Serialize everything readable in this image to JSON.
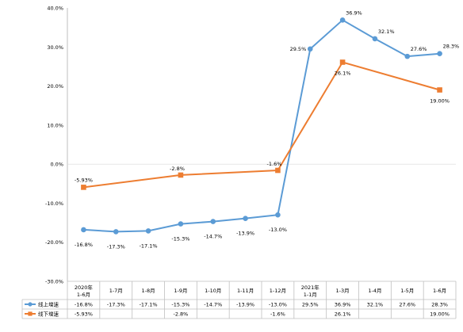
{
  "chart_data": {
    "type": "line",
    "categories": [
      "2020年\n1-6月",
      "1-7月",
      "1-8月",
      "1-9月",
      "1-10月",
      "1-11月",
      "1-12月",
      "2021年\n1-1月",
      "1-3月",
      "1-4月",
      "1-5月",
      "1-6月"
    ],
    "yticks": [
      "40.0%",
      "30.0%",
      "20.0%",
      "10.0%",
      "0.0%",
      "-10.0%",
      "-20.0%",
      "-30.0%"
    ],
    "ylim": [
      -30,
      40
    ],
    "grid": false,
    "legend_placement": "bottom-left (data table)",
    "series": [
      {
        "name": "线上增速",
        "color": "#5b9bd5",
        "marker": "circle",
        "values": [
          -16.8,
          -17.3,
          -17.1,
          -15.3,
          -14.7,
          -13.9,
          -13.0,
          29.5,
          36.9,
          32.1,
          27.6,
          28.3
        ],
        "labels": [
          "-16.8%",
          "-17.3%",
          "-17.1%",
          "-15.3%",
          "-14.7%",
          "-13.9%",
          "-13.0%",
          "29.5%",
          "36.9%",
          "32.1%",
          "27.6%",
          "28.3%"
        ]
      },
      {
        "name": "线下增速",
        "color": "#ed7d31",
        "marker": "square",
        "values": [
          -5.93,
          null,
          null,
          -2.8,
          null,
          null,
          -1.6,
          null,
          26.1,
          null,
          null,
          19.0
        ],
        "labels": [
          "-5.93%",
          "",
          "",
          "-2.8%",
          "",
          "",
          "-1.6%",
          "",
          "26.1%",
          "",
          "",
          "19.00%"
        ]
      }
    ]
  }
}
